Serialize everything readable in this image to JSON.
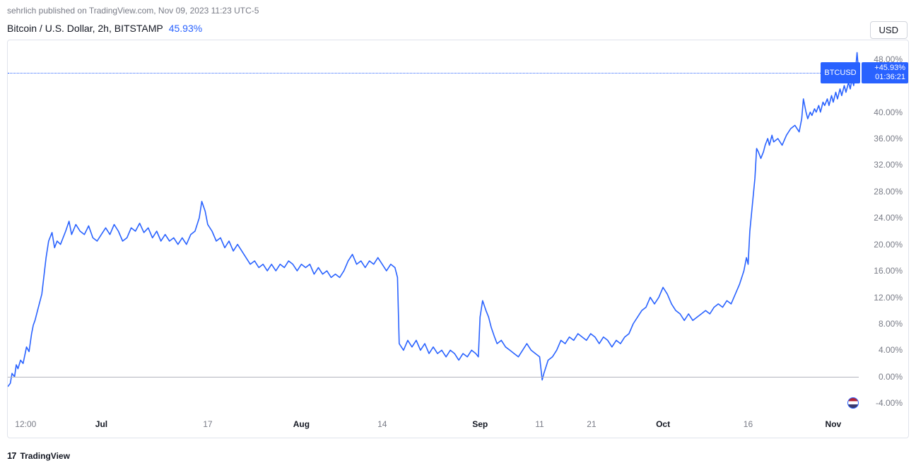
{
  "header": {
    "publisher_line": "sehrlich published on TradingView.com, Nov 09, 2023 11:23 UTC-5"
  },
  "symbol": {
    "label": "Bitcoin / U.S. Dollar, 2h, BITSTAMP",
    "pct_change": "45.93%",
    "currency_button": "USD"
  },
  "price_tag": {
    "ticker": "BTCUSD",
    "pct": "+45.93%",
    "countdown": "01:36:21"
  },
  "yaxis": {
    "min": -6,
    "max": 50,
    "ticks": [
      -4,
      0,
      4,
      8,
      12,
      16,
      20,
      24,
      28,
      32,
      36,
      40,
      48
    ],
    "tick_labels": [
      "-4.00%",
      "0.00%",
      "4.00%",
      "8.00%",
      "12.00%",
      "16.00%",
      "20.00%",
      "24.00%",
      "28.00%",
      "32.00%",
      "36.00%",
      "40.00%",
      "48.00%"
    ],
    "zero_line_color": "#b2b5be",
    "grid_color": "#e0e3eb",
    "label_color": "#787b86",
    "label_fontsize": 12,
    "current_value": 45.93,
    "flag_value": -4.0
  },
  "xaxis": {
    "min": 0,
    "max": 1000,
    "ticks": [
      {
        "pos": 21,
        "label": "12:00",
        "strong": false
      },
      {
        "pos": 110,
        "label": "Jul",
        "strong": true
      },
      {
        "pos": 235,
        "label": "17",
        "strong": false
      },
      {
        "pos": 345,
        "label": "Aug",
        "strong": true
      },
      {
        "pos": 440,
        "label": "14",
        "strong": false
      },
      {
        "pos": 555,
        "label": "Sep",
        "strong": true
      },
      {
        "pos": 625,
        "label": "11",
        "strong": false
      },
      {
        "pos": 686,
        "label": "21",
        "strong": false
      },
      {
        "pos": 770,
        "label": "Oct",
        "strong": true
      },
      {
        "pos": 870,
        "label": "16",
        "strong": false
      },
      {
        "pos": 970,
        "label": "Nov",
        "strong": true
      }
    ],
    "label_color": "#787b86",
    "label_fontsize": 12
  },
  "series": {
    "type": "line",
    "color": "#2962ff",
    "line_width": 1.6,
    "data": [
      [
        0,
        -1.5
      ],
      [
        3,
        -1.0
      ],
      [
        5,
        0.5
      ],
      [
        8,
        0.0
      ],
      [
        10,
        1.8
      ],
      [
        12,
        1.2
      ],
      [
        15,
        2.5
      ],
      [
        18,
        2.0
      ],
      [
        22,
        4.5
      ],
      [
        25,
        3.8
      ],
      [
        28,
        6.5
      ],
      [
        30,
        7.8
      ],
      [
        32,
        8.5
      ],
      [
        35,
        10.0
      ],
      [
        40,
        12.5
      ],
      [
        45,
        18.0
      ],
      [
        48,
        20.5
      ],
      [
        52,
        21.8
      ],
      [
        55,
        19.5
      ],
      [
        58,
        20.5
      ],
      [
        62,
        20.0
      ],
      [
        68,
        22.0
      ],
      [
        72,
        23.5
      ],
      [
        75,
        21.5
      ],
      [
        80,
        23.0
      ],
      [
        85,
        22.0
      ],
      [
        90,
        21.5
      ],
      [
        95,
        22.8
      ],
      [
        100,
        21.0
      ],
      [
        105,
        20.5
      ],
      [
        110,
        21.5
      ],
      [
        115,
        22.5
      ],
      [
        120,
        21.5
      ],
      [
        125,
        23.0
      ],
      [
        130,
        22.0
      ],
      [
        135,
        20.5
      ],
      [
        140,
        21.0
      ],
      [
        145,
        22.5
      ],
      [
        150,
        22.0
      ],
      [
        155,
        23.2
      ],
      [
        160,
        21.8
      ],
      [
        165,
        22.5
      ],
      [
        170,
        21.0
      ],
      [
        175,
        22.0
      ],
      [
        180,
        20.5
      ],
      [
        185,
        21.5
      ],
      [
        190,
        20.5
      ],
      [
        195,
        21.0
      ],
      [
        200,
        20.0
      ],
      [
        205,
        21.0
      ],
      [
        210,
        20.0
      ],
      [
        215,
        21.5
      ],
      [
        220,
        22.0
      ],
      [
        225,
        24.0
      ],
      [
        228,
        26.5
      ],
      [
        232,
        25.0
      ],
      [
        235,
        23.0
      ],
      [
        240,
        22.0
      ],
      [
        245,
        20.5
      ],
      [
        250,
        21.0
      ],
      [
        255,
        19.5
      ],
      [
        260,
        20.5
      ],
      [
        265,
        19.0
      ],
      [
        270,
        20.0
      ],
      [
        275,
        19.0
      ],
      [
        280,
        18.0
      ],
      [
        285,
        17.0
      ],
      [
        290,
        17.5
      ],
      [
        295,
        16.5
      ],
      [
        300,
        17.0
      ],
      [
        305,
        16.0
      ],
      [
        310,
        17.0
      ],
      [
        315,
        16.0
      ],
      [
        320,
        17.0
      ],
      [
        325,
        16.5
      ],
      [
        330,
        17.5
      ],
      [
        335,
        17.0
      ],
      [
        340,
        16.0
      ],
      [
        345,
        17.0
      ],
      [
        350,
        16.5
      ],
      [
        355,
        17.0
      ],
      [
        360,
        15.5
      ],
      [
        365,
        16.5
      ],
      [
        370,
        15.5
      ],
      [
        375,
        16.0
      ],
      [
        380,
        15.0
      ],
      [
        385,
        15.5
      ],
      [
        390,
        15.0
      ],
      [
        395,
        16.0
      ],
      [
        400,
        17.5
      ],
      [
        405,
        18.5
      ],
      [
        410,
        17.0
      ],
      [
        415,
        17.5
      ],
      [
        420,
        16.5
      ],
      [
        425,
        17.5
      ],
      [
        430,
        17.0
      ],
      [
        435,
        18.0
      ],
      [
        440,
        17.0
      ],
      [
        445,
        16.0
      ],
      [
        450,
        17.0
      ],
      [
        455,
        16.5
      ],
      [
        458,
        15.0
      ],
      [
        460,
        5.0
      ],
      [
        465,
        4.0
      ],
      [
        470,
        5.5
      ],
      [
        475,
        4.5
      ],
      [
        480,
        5.5
      ],
      [
        485,
        4.0
      ],
      [
        490,
        5.0
      ],
      [
        495,
        3.5
      ],
      [
        500,
        4.5
      ],
      [
        505,
        3.5
      ],
      [
        510,
        4.0
      ],
      [
        515,
        3.0
      ],
      [
        520,
        4.0
      ],
      [
        525,
        3.5
      ],
      [
        530,
        2.5
      ],
      [
        535,
        3.5
      ],
      [
        540,
        3.0
      ],
      [
        545,
        4.0
      ],
      [
        550,
        3.5
      ],
      [
        553,
        3.0
      ],
      [
        555,
        9.0
      ],
      [
        558,
        11.5
      ],
      [
        562,
        10.0
      ],
      [
        565,
        9.0
      ],
      [
        568,
        7.5
      ],
      [
        572,
        6.0
      ],
      [
        575,
        5.0
      ],
      [
        580,
        5.5
      ],
      [
        585,
        4.5
      ],
      [
        590,
        4.0
      ],
      [
        595,
        3.5
      ],
      [
        600,
        3.0
      ],
      [
        605,
        4.0
      ],
      [
        610,
        5.0
      ],
      [
        615,
        4.0
      ],
      [
        620,
        3.5
      ],
      [
        625,
        3.0
      ],
      [
        628,
        -0.5
      ],
      [
        630,
        0.5
      ],
      [
        635,
        2.5
      ],
      [
        640,
        3.0
      ],
      [
        645,
        4.0
      ],
      [
        650,
        5.5
      ],
      [
        655,
        5.0
      ],
      [
        660,
        6.0
      ],
      [
        665,
        5.5
      ],
      [
        670,
        6.5
      ],
      [
        675,
        6.0
      ],
      [
        680,
        5.5
      ],
      [
        685,
        6.5
      ],
      [
        690,
        6.0
      ],
      [
        695,
        5.0
      ],
      [
        700,
        6.0
      ],
      [
        705,
        5.5
      ],
      [
        710,
        4.5
      ],
      [
        715,
        5.5
      ],
      [
        720,
        5.0
      ],
      [
        725,
        6.0
      ],
      [
        730,
        6.5
      ],
      [
        735,
        8.0
      ],
      [
        740,
        9.0
      ],
      [
        745,
        10.0
      ],
      [
        750,
        10.5
      ],
      [
        755,
        12.0
      ],
      [
        760,
        11.0
      ],
      [
        765,
        12.0
      ],
      [
        770,
        13.5
      ],
      [
        775,
        12.5
      ],
      [
        780,
        11.0
      ],
      [
        785,
        10.0
      ],
      [
        790,
        9.5
      ],
      [
        795,
        8.5
      ],
      [
        800,
        9.5
      ],
      [
        805,
        8.5
      ],
      [
        810,
        9.0
      ],
      [
        815,
        9.5
      ],
      [
        820,
        10.0
      ],
      [
        825,
        9.5
      ],
      [
        830,
        10.5
      ],
      [
        835,
        11.0
      ],
      [
        840,
        10.5
      ],
      [
        845,
        11.5
      ],
      [
        850,
        11.0
      ],
      [
        855,
        12.5
      ],
      [
        860,
        14.0
      ],
      [
        865,
        16.0
      ],
      [
        868,
        18.0
      ],
      [
        870,
        17.0
      ],
      [
        872,
        22.0
      ],
      [
        875,
        26.0
      ],
      [
        878,
        30.0
      ],
      [
        880,
        34.5
      ],
      [
        882,
        34.0
      ],
      [
        885,
        33.0
      ],
      [
        888,
        34.0
      ],
      [
        890,
        35.0
      ],
      [
        893,
        36.0
      ],
      [
        895,
        35.0
      ],
      [
        898,
        36.5
      ],
      [
        900,
        35.5
      ],
      [
        905,
        36.0
      ],
      [
        910,
        35.0
      ],
      [
        915,
        36.5
      ],
      [
        920,
        37.5
      ],
      [
        925,
        38.0
      ],
      [
        930,
        37.0
      ],
      [
        933,
        39.0
      ],
      [
        935,
        42.0
      ],
      [
        938,
        40.0
      ],
      [
        940,
        39.0
      ],
      [
        943,
        40.0
      ],
      [
        945,
        39.5
      ],
      [
        948,
        40.5
      ],
      [
        950,
        40.0
      ],
      [
        953,
        41.0
      ],
      [
        955,
        40.0
      ],
      [
        958,
        41.5
      ],
      [
        960,
        41.0
      ],
      [
        963,
        42.0
      ],
      [
        965,
        41.0
      ],
      [
        968,
        42.5
      ],
      [
        970,
        41.5
      ],
      [
        973,
        43.0
      ],
      [
        975,
        42.0
      ],
      [
        978,
        43.5
      ],
      [
        980,
        42.5
      ],
      [
        983,
        44.0
      ],
      [
        985,
        43.0
      ],
      [
        988,
        44.5
      ],
      [
        990,
        43.5
      ],
      [
        992,
        45.0
      ],
      [
        994,
        44.0
      ],
      [
        996,
        46.0
      ],
      [
        998,
        49.0
      ],
      [
        1000,
        45.93
      ]
    ]
  },
  "style": {
    "background_color": "#ffffff",
    "border_color": "#e0e3eb",
    "price_tag_bg": "#2962ff",
    "price_tag_text": "#ffffff",
    "dotted_line_color": "#2962ff"
  },
  "footer": {
    "brand": "TradingView"
  }
}
